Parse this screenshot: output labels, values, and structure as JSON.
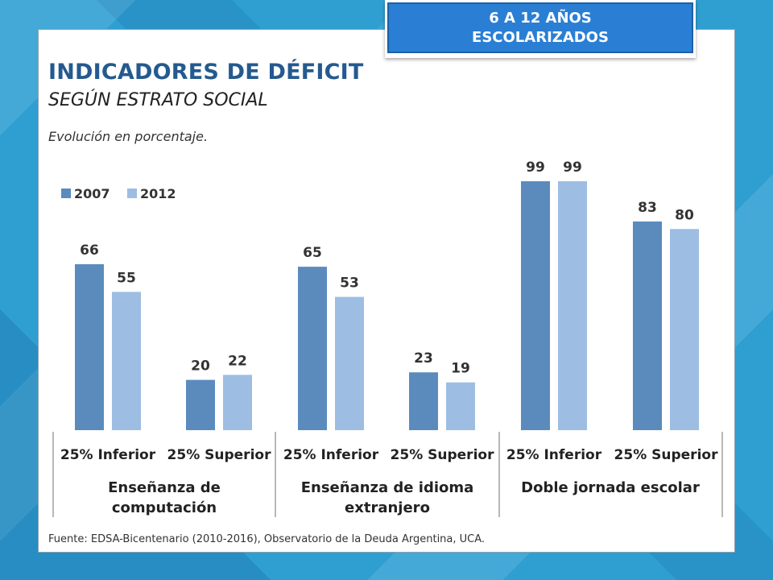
{
  "badge": {
    "line1": "6 A 12 AÑOS",
    "line2": "ESCOLARIZADOS"
  },
  "header": {
    "title": "INDICADORES DE DÉFICIT",
    "subtitle": "SEGÚN ESTRATO SOCIAL",
    "note": "Evolución en porcentaje."
  },
  "footer": {
    "source": "Fuente: EDSA-Bicentenario (2010-2016), Observatorio de la Deuda Argentina, UCA."
  },
  "colors": {
    "series_2007": "#5b8bbd",
    "series_2012": "#9dbde3"
  },
  "chart_data": {
    "type": "bar",
    "title": "INDICADORES DE DÉFICIT",
    "ylim": [
      0,
      100
    ],
    "legend_position": "top-left",
    "grid": false,
    "categories": [
      "25% Inferior",
      "25% Superior",
      "25% Inferior",
      "25% Superior",
      "25% Inferior",
      "25% Superior"
    ],
    "groups": [
      {
        "label": "Enseñanza de computación",
        "line1": "Enseñanza de",
        "line2": "computación",
        "categories": [
          0,
          1
        ]
      },
      {
        "label": "Enseñanza de idioma extranjero",
        "line1": "Enseñanza de idioma",
        "line2": "extranjero",
        "categories": [
          2,
          3
        ]
      },
      {
        "label": "Doble jornada escolar",
        "line1": "Doble jornada escolar",
        "line2": "",
        "categories": [
          4,
          5
        ]
      }
    ],
    "series": [
      {
        "name": "2007",
        "values": [
          66,
          20,
          65,
          23,
          99,
          83
        ]
      },
      {
        "name": "2012",
        "values": [
          55,
          22,
          53,
          19,
          99,
          80
        ]
      }
    ]
  }
}
